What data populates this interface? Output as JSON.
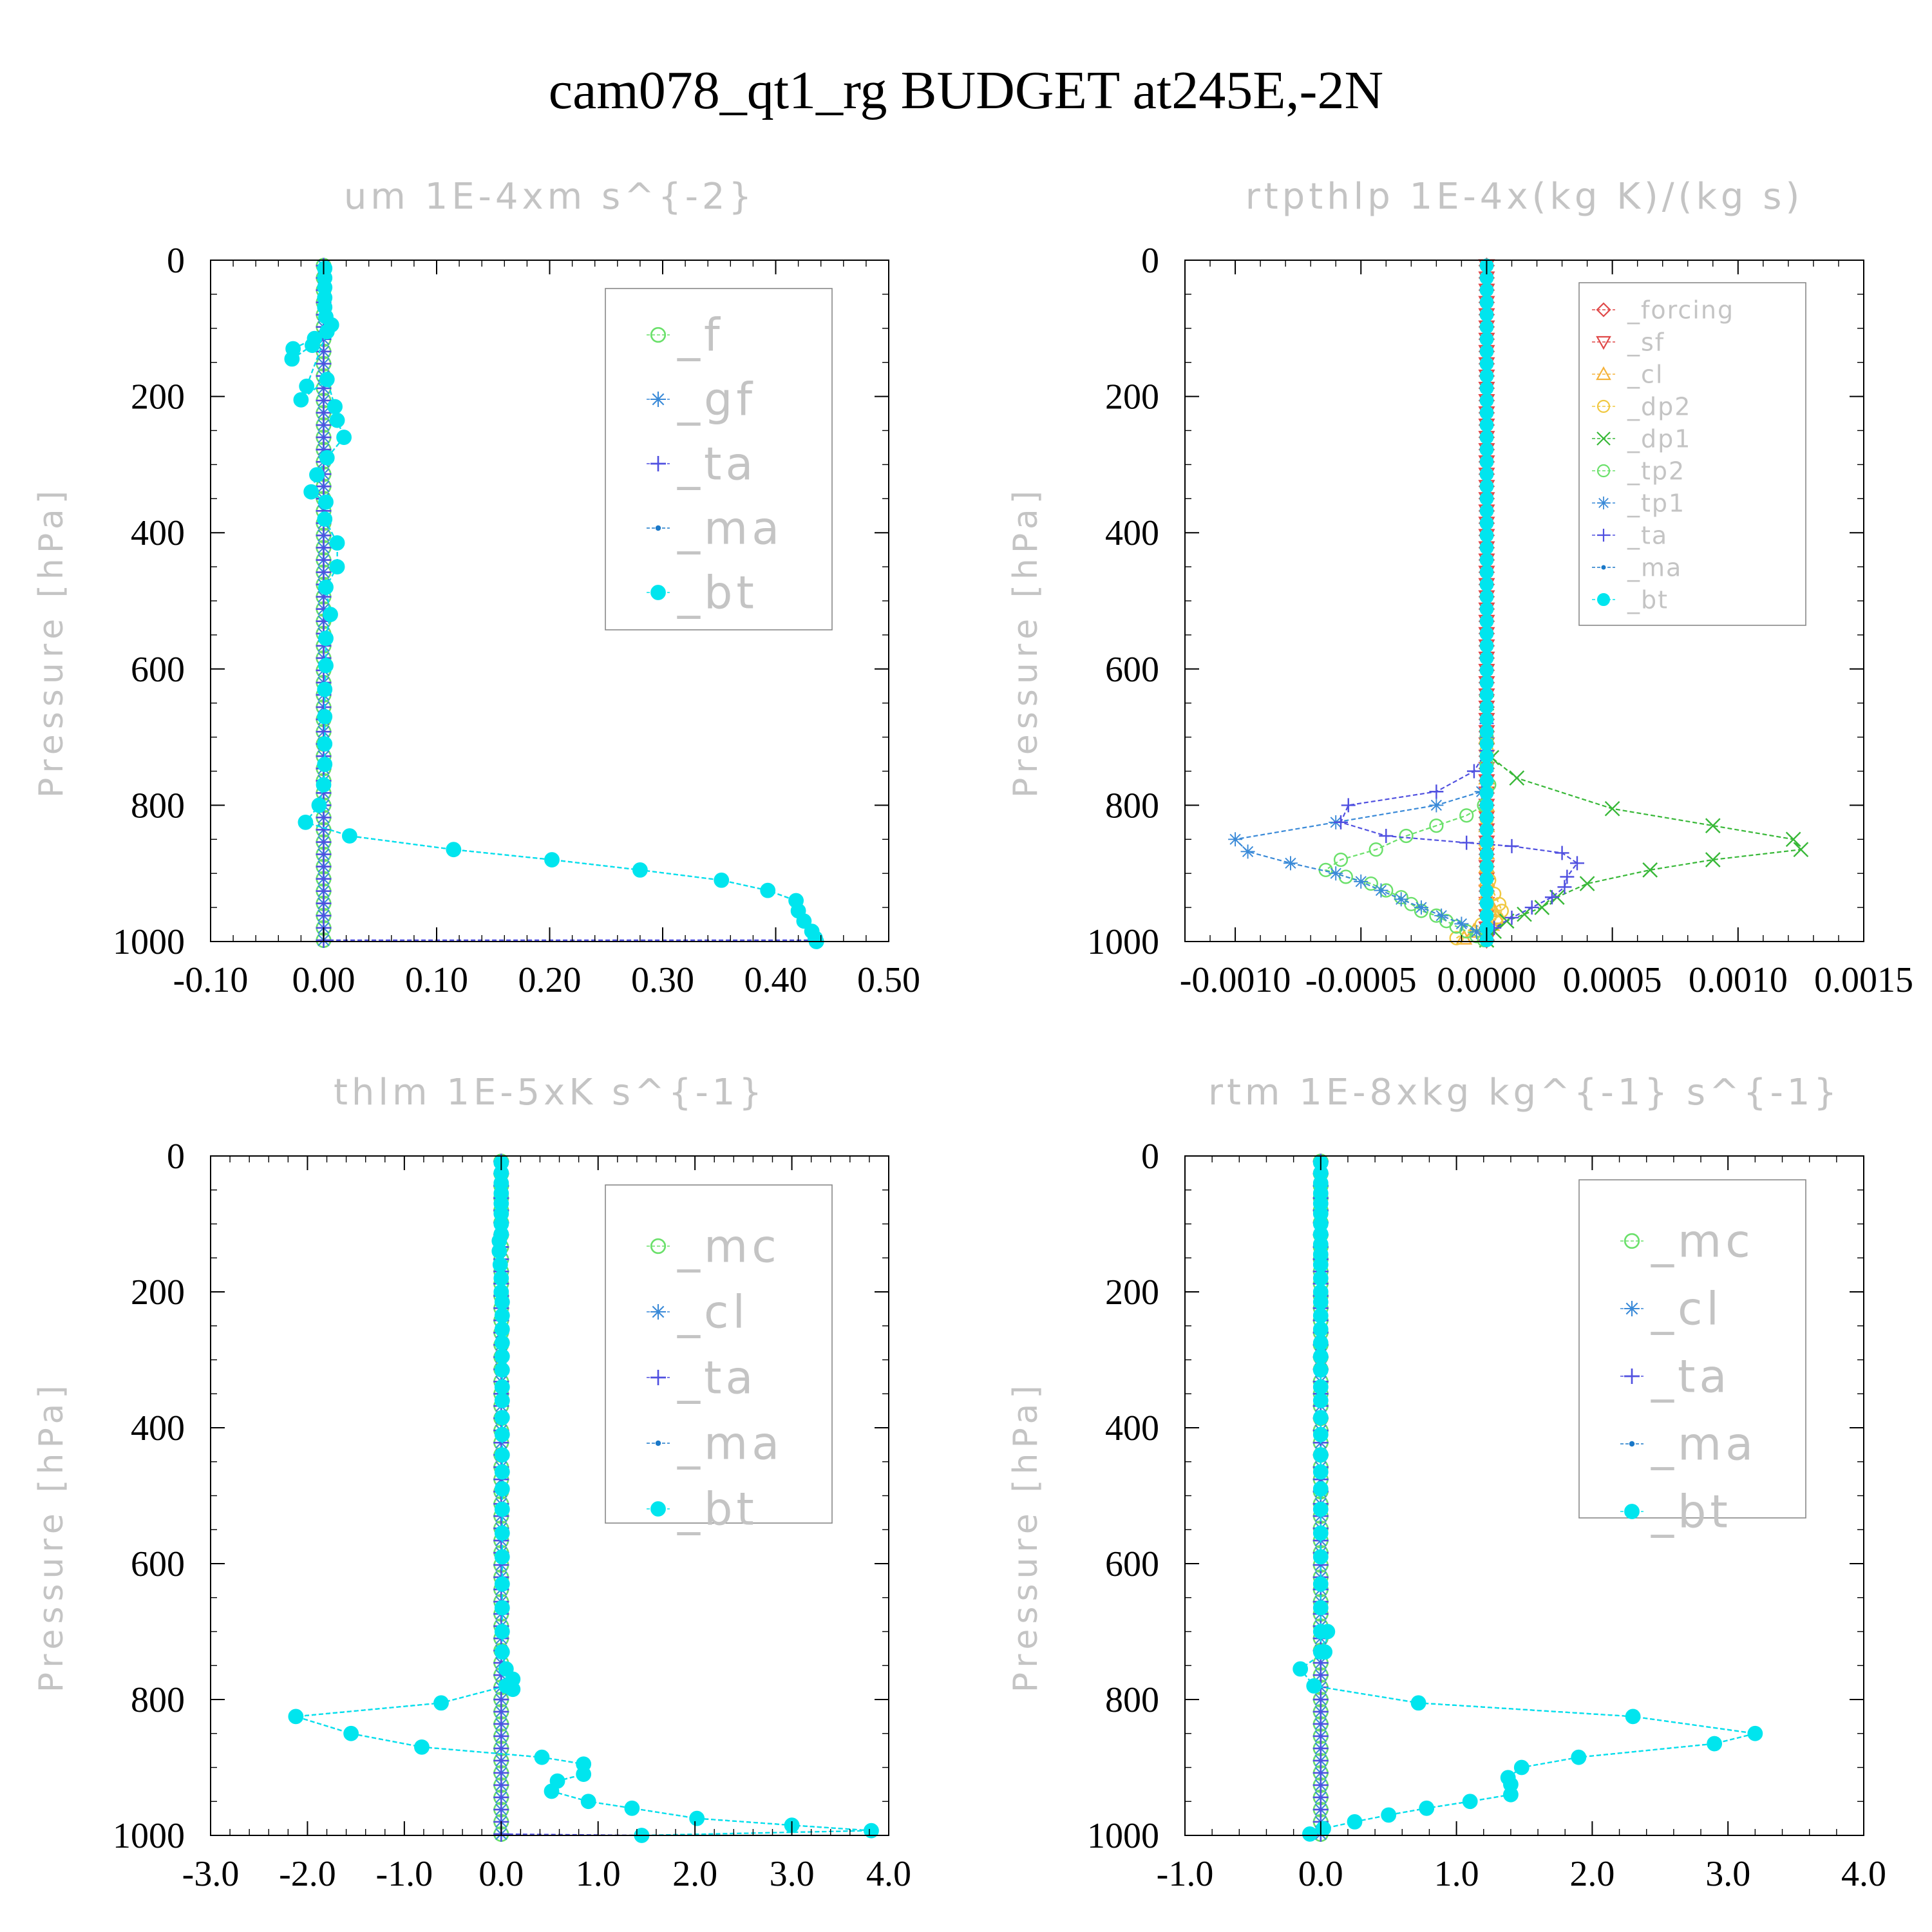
{
  "figure": {
    "title": "cam078_qt1_rg  BUDGET at245E,-2N"
  },
  "colors": {
    "forcing": "#e04848",
    "sf": "#e04848",
    "cl_orange": "#f5b23a",
    "dp2": "#f0c840",
    "dp1": "#38b838",
    "tp2": "#6ae06a",
    "f": "#6ae06a",
    "mc": "#6ae06a",
    "gf": "#3a8ad8",
    "tp1": "#3a8ad8",
    "cl": "#3a8ad8",
    "ta": "#5050e0",
    "ma": "#1a78c8",
    "bt": "#00e5ee"
  },
  "chart_data": [
    {
      "type": "line",
      "title": "um  1E-4xm s^{-2}",
      "ylabel": "Pressure [hPa]",
      "xlim": [
        -0.1,
        0.5
      ],
      "ylim": [
        1000,
        0
      ],
      "xticks": [
        "-0.10",
        "0.00",
        "0.10",
        "0.20",
        "0.30",
        "0.40",
        "0.50"
      ],
      "xtick_values": [
        -0.1,
        0.0,
        0.1,
        0.2,
        0.3,
        0.4,
        0.5
      ],
      "yticks": [
        "0",
        "200",
        "400",
        "600",
        "800",
        "1000"
      ],
      "legend_position": "top-right",
      "legend_size": "large",
      "series": [
        {
          "name": "_f",
          "color": "#6ae06a",
          "marker": "circle-open",
          "const": 0.0
        },
        {
          "name": "_gf",
          "color": "#3a8ad8",
          "marker": "asterisk",
          "const": 0.0
        },
        {
          "name": "_ta",
          "color": "#5050e0",
          "marker": "plus",
          "const": 0.0,
          "tail": {
            "p": 998,
            "x": 0.43
          }
        },
        {
          "name": "_ma",
          "color": "#1a78c8",
          "marker": "dot",
          "values_from": "_bt"
        },
        {
          "name": "_bt",
          "color": "#00e5ee",
          "marker": "filled-circle",
          "x": [
            0.001,
            0.001,
            0.001,
            0.001,
            0.001,
            0.002,
            0.007,
            -0.008,
            -0.027,
            -0.028,
            -0.01,
            0.003,
            -0.015,
            -0.02,
            0.003,
            0.01,
            0.012,
            0.018,
            0.003,
            -0.006,
            -0.011,
            0.002,
            0.001,
            0.012,
            0.012,
            0.002,
            0.006,
            0.002,
            0.002,
            0.001,
            0.001,
            0.001,
            0.001,
            0.0,
            -0.004,
            -0.016,
            0.023,
            0.115,
            0.202,
            0.28,
            0.352,
            0.393,
            0.418,
            0.42,
            0.425,
            0.432,
            0.435,
            0.436
          ],
          "p": [
            12,
            26,
            40,
            55,
            69,
            83,
            95,
            115,
            130,
            145,
            125,
            105,
            185,
            205,
            175,
            215,
            235,
            260,
            290,
            315,
            340,
            355,
            380,
            415,
            450,
            480,
            520,
            555,
            595,
            630,
            670,
            710,
            740,
            770,
            800,
            825,
            845,
            865,
            880,
            895,
            910,
            925,
            940,
            955,
            970,
            985,
            995,
            1000
          ]
        }
      ]
    },
    {
      "type": "line",
      "title": "rtpthlp  1E-4x(kg K)/(kg s)",
      "ylabel": "Pressure [hPa]",
      "xlim": [
        -0.0012,
        0.0015
      ],
      "ylim": [
        1000,
        0
      ],
      "xticks": [
        "-0.0010",
        "-0.0005",
        "0.0000",
        "0.0005",
        "0.0010",
        "0.0015"
      ],
      "xtick_values": [
        -0.001,
        -0.0005,
        0.0,
        0.0005,
        0.001,
        0.0015
      ],
      "yticks": [
        "0",
        "200",
        "400",
        "600",
        "800",
        "1000"
      ],
      "legend_position": "top-right",
      "legend_size": "small",
      "series": [
        {
          "name": "_forcing",
          "color": "#e04848",
          "marker": "diamond-open",
          "const": 0.0
        },
        {
          "name": "_sf",
          "color": "#e04848",
          "marker": "triangle-down-open",
          "const": 0.0
        },
        {
          "name": "_cl",
          "color": "#f5b23a",
          "marker": "triangle-open",
          "x": [
            0,
            0,
            0,
            0,
            0,
            0,
            0,
            0,
            0,
            1e-05,
            3e-05,
            4e-05,
            2e-05,
            -5e-05,
            -9e-05
          ],
          "p": [
            700,
            760,
            800,
            830,
            850,
            870,
            890,
            910,
            930,
            945,
            955,
            965,
            975,
            985,
            995
          ]
        },
        {
          "name": "_dp2",
          "color": "#f0c840",
          "marker": "circle-open",
          "x": [
            0,
            0,
            0,
            0,
            0,
            1e-05,
            3e-05,
            5e-05,
            6e-05,
            4e-05,
            -2e-05,
            -8e-05,
            -0.00012
          ],
          "p": [
            720,
            780,
            820,
            860,
            890,
            910,
            930,
            945,
            955,
            965,
            975,
            985,
            995
          ]
        },
        {
          "name": "_dp1",
          "color": "#38b838",
          "marker": "x",
          "x": [
            0,
            0,
            2e-05,
            0.00012,
            0.0005,
            0.0009,
            0.00122,
            0.00125,
            0.0009,
            0.00065,
            0.0004,
            0.00028,
            0.00022,
            0.00015,
            8e-05,
            3e-05,
            0
          ],
          "p": [
            650,
            700,
            730,
            760,
            805,
            830,
            850,
            865,
            880,
            895,
            915,
            935,
            950,
            960,
            970,
            985,
            998
          ]
        },
        {
          "name": "_tp2",
          "color": "#6ae06a",
          "marker": "circle-open",
          "x": [
            0,
            0,
            1e-05,
            -1e-05,
            -8e-05,
            -0.0002,
            -0.00032,
            -0.00044,
            -0.00058,
            -0.00064,
            -0.00056,
            -0.00046,
            -0.0004,
            -0.00034,
            -0.0003,
            -0.00026,
            -0.0002,
            -0.00016,
            -0.00012,
            -8e-05,
            -4e-05,
            -1e-05
          ],
          "p": [
            700,
            740,
            770,
            800,
            815,
            830,
            845,
            865,
            880,
            895,
            905,
            915,
            925,
            935,
            945,
            955,
            962,
            970,
            978,
            985,
            992,
            998
          ]
        },
        {
          "name": "_tp1",
          "color": "#3a8ad8",
          "marker": "asterisk",
          "x": [
            0,
            0,
            -2e-05,
            -0.0002,
            -0.0006,
            -0.001,
            -0.00095,
            -0.00078,
            -0.0006,
            -0.0005,
            -0.00042,
            -0.00034,
            -0.00026,
            -0.00018,
            -0.0001,
            -4e-05,
            0
          ],
          "p": [
            700,
            750,
            780,
            800,
            825,
            850,
            868,
            885,
            900,
            912,
            925,
            938,
            950,
            962,
            974,
            986,
            998
          ]
        },
        {
          "name": "_ta",
          "color": "#5050e0",
          "marker": "plus",
          "x": [
            0,
            0,
            -5e-05,
            -0.0002,
            -0.00055,
            -0.00058,
            -0.0004,
            -8e-05,
            0.0001,
            0.0003,
            0.00036,
            0.00032,
            0.00031,
            0.00026,
            0.00018,
            0.0001,
            3e-05,
            0
          ],
          "p": [
            680,
            720,
            750,
            780,
            800,
            825,
            845,
            855,
            860,
            870,
            885,
            905,
            920,
            935,
            950,
            965,
            980,
            998
          ]
        },
        {
          "name": "_ma",
          "color": "#1a78c8",
          "marker": "dot",
          "const": 0.0
        },
        {
          "name": "_bt",
          "color": "#00e5ee",
          "marker": "filled-circle",
          "const": 0.0
        }
      ]
    },
    {
      "type": "line",
      "title": "thlm  1E-5xK s^{-1}",
      "ylabel": "Pressure [hPa]",
      "xlim": [
        -3.0,
        4.0
      ],
      "ylim": [
        1000,
        0
      ],
      "xticks": [
        "-3.0",
        "-2.0",
        "-1.0",
        "0.0",
        "1.0",
        "2.0",
        "3.0",
        "4.0"
      ],
      "xtick_values": [
        -3.0,
        -2.0,
        -1.0,
        0.0,
        1.0,
        2.0,
        3.0,
        4.0
      ],
      "yticks": [
        "0",
        "200",
        "400",
        "600",
        "800",
        "1000"
      ],
      "legend_position": "top-right",
      "legend_size": "large",
      "series": [
        {
          "name": "_mc",
          "color": "#6ae06a",
          "marker": "circle-open",
          "const": 0.0
        },
        {
          "name": "_cl",
          "color": "#3a8ad8",
          "marker": "asterisk",
          "const": 0.0
        },
        {
          "name": "_ta",
          "color": "#5050e0",
          "marker": "plus",
          "const": 0.0,
          "tail": {
            "p": 1000,
            "x": 1.45
          }
        },
        {
          "name": "_ma",
          "color": "#1a78c8",
          "marker": "dot",
          "values_from": "_bt"
        },
        {
          "name": "_bt",
          "color": "#00e5ee",
          "marker": "filled-circle",
          "x": [
            0.0,
            0.0,
            0.0,
            0.0,
            0.0,
            0.0,
            0.0,
            0.0,
            -0.02,
            -0.02,
            -0.01,
            0.0,
            0.0,
            0.01,
            0.01,
            0.01,
            0.01,
            0.01,
            0.01,
            0.01,
            0.01,
            0.01,
            0.01,
            0.01,
            0.01,
            0.01,
            0.01,
            0.01,
            0.01,
            0.01,
            0.01,
            0.01,
            0.01,
            0.05,
            0.12,
            0.12,
            0.05,
            -0.62,
            -2.12,
            -1.55,
            -0.82,
            0.42,
            0.85,
            0.85,
            0.58,
            0.52,
            0.9,
            1.35,
            2.02,
            3.0,
            3.82,
            1.45
          ],
          "p": [
            10,
            25,
            40,
            55,
            70,
            85,
            100,
            115,
            125,
            140,
            160,
            180,
            200,
            215,
            235,
            255,
            275,
            295,
            315,
            340,
            360,
            385,
            410,
            440,
            465,
            490,
            520,
            555,
            590,
            630,
            665,
            700,
            730,
            755,
            770,
            785,
            780,
            805,
            825,
            850,
            870,
            885,
            895,
            910,
            920,
            935,
            950,
            960,
            975,
            985,
            993,
            1000
          ]
        }
      ]
    },
    {
      "type": "line",
      "title": "rtm  1E-8xkg kg^{-1} s^{-1}",
      "ylabel": "Pressure [hPa]",
      "xlim": [
        -1.0,
        4.0
      ],
      "ylim": [
        1000,
        0
      ],
      "xticks": [
        "-1.0",
        "0.0",
        "1.0",
        "2.0",
        "3.0",
        "4.0"
      ],
      "xtick_values": [
        -1.0,
        0.0,
        1.0,
        2.0,
        3.0,
        4.0
      ],
      "yticks": [
        "0",
        "200",
        "400",
        "600",
        "800",
        "1000"
      ],
      "legend_position": "top-right",
      "legend_size": "large",
      "series": [
        {
          "name": "_mc",
          "color": "#6ae06a",
          "marker": "circle-open",
          "const": 0.0
        },
        {
          "name": "_cl",
          "color": "#3a8ad8",
          "marker": "asterisk",
          "const": 0.0
        },
        {
          "name": "_ta",
          "color": "#5050e0",
          "marker": "plus",
          "const": 0.0
        },
        {
          "name": "_ma",
          "color": "#1a78c8",
          "marker": "dot",
          "values_from": "_bt"
        },
        {
          "name": "_bt",
          "color": "#00e5ee",
          "marker": "filled-circle",
          "x": [
            0.0,
            0.0,
            0.0,
            0.0,
            0.0,
            0.0,
            0.0,
            0.0,
            0.0,
            0.0,
            0.0,
            0.0,
            0.0,
            0.0,
            0.0,
            0.0,
            0.0,
            0.0,
            0.0,
            0.0,
            0.0,
            0.0,
            0.0,
            0.0,
            0.0,
            0.0,
            0.0,
            0.0,
            0.0,
            0.0,
            0.0,
            0.0,
            0.0,
            0.05,
            0.03,
            -0.15,
            -0.05,
            0.72,
            2.3,
            3.2,
            2.9,
            1.9,
            1.48,
            1.38,
            1.4,
            1.4,
            1.1,
            0.78,
            0.5,
            0.25,
            0.02,
            -0.08
          ],
          "p": [
            10,
            25,
            40,
            55,
            70,
            85,
            100,
            115,
            130,
            145,
            160,
            180,
            200,
            215,
            235,
            255,
            275,
            295,
            315,
            340,
            360,
            385,
            410,
            440,
            465,
            490,
            520,
            555,
            590,
            630,
            665,
            700,
            730,
            700,
            730,
            755,
            780,
            805,
            825,
            850,
            865,
            885,
            900,
            915,
            925,
            940,
            950,
            960,
            970,
            980,
            990,
            998
          ]
        }
      ]
    }
  ]
}
